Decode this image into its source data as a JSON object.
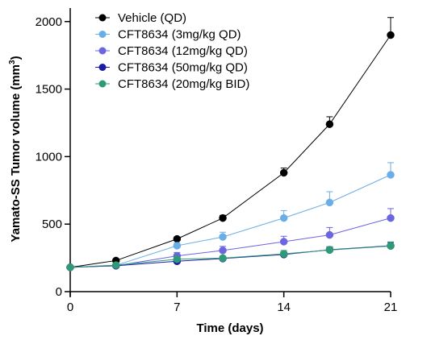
{
  "chart_data": {
    "type": "line",
    "xlabel": "Time (days)",
    "ylabel": "Yamato-SS Tumor volume (mm³)",
    "xlim": [
      0,
      21
    ],
    "ylim": [
      0,
      2100
    ],
    "x_ticks": [
      0,
      7,
      14,
      21
    ],
    "y_ticks": [
      0,
      500,
      1000,
      1500,
      2000
    ],
    "x": [
      0,
      3,
      7,
      10,
      14,
      17,
      21
    ],
    "grid": false,
    "legend_position": "top-left",
    "series": [
      {
        "name": "Vehicle (QD)",
        "color": "#000000",
        "values": [
          180,
          230,
          390,
          545,
          880,
          1240,
          1900
        ],
        "errors": [
          0,
          12,
          15,
          20,
          35,
          55,
          130
        ]
      },
      {
        "name": "CFT8634 (3mg/kg QD)",
        "color": "#6aaee8",
        "values": [
          180,
          195,
          340,
          405,
          545,
          660,
          865
        ],
        "errors": [
          0,
          10,
          20,
          35,
          55,
          80,
          90
        ]
      },
      {
        "name": "CFT8634 (12mg/kg QD)",
        "color": "#6b65e0",
        "values": [
          180,
          192,
          265,
          305,
          370,
          420,
          545
        ],
        "errors": [
          0,
          10,
          25,
          30,
          40,
          55,
          70
        ]
      },
      {
        "name": "CFT8634 (50mg/kg QD)",
        "color": "#1b1aa8",
        "values": [
          180,
          192,
          225,
          245,
          275,
          310,
          340
        ],
        "errors": [
          0,
          8,
          15,
          15,
          20,
          20,
          25
        ]
      },
      {
        "name": "CFT8634 (20mg/kg BID)",
        "color": "#2f9a76",
        "values": [
          180,
          196,
          240,
          248,
          280,
          308,
          338
        ],
        "errors": [
          0,
          8,
          15,
          15,
          25,
          25,
          30
        ]
      }
    ]
  }
}
